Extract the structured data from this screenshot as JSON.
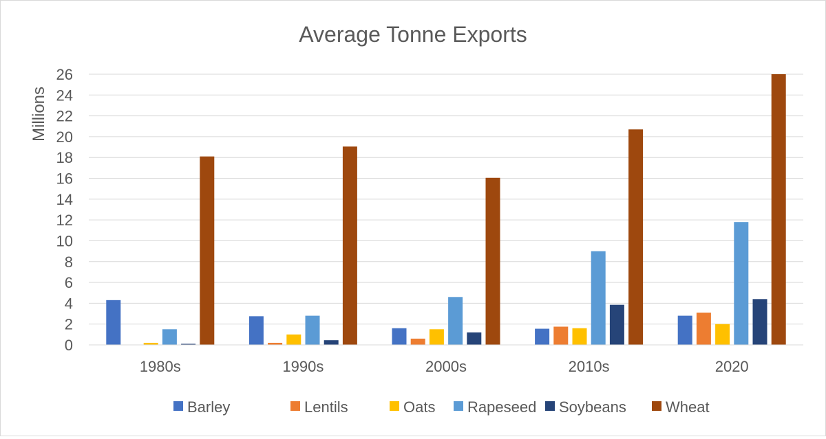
{
  "chart_data": {
    "type": "bar",
    "title": "Average Tonne Exports",
    "ylabel": "Millions",
    "xlabel": "",
    "categories": [
      "1980s",
      "1990s",
      "2000s",
      "2010s",
      "2020"
    ],
    "ylim": [
      0,
      26
    ],
    "yticks": [
      0,
      2,
      4,
      6,
      8,
      10,
      12,
      14,
      16,
      18,
      20,
      22,
      24,
      26
    ],
    "grid": true,
    "legend_position": "bottom",
    "series": [
      {
        "name": "Barley",
        "color": "#4472C4",
        "values": [
          4.3,
          2.75,
          1.6,
          1.55,
          2.8
        ]
      },
      {
        "name": "Lentils",
        "color": "#ED7D31",
        "values": [
          0.0,
          0.2,
          0.6,
          1.75,
          3.1
        ]
      },
      {
        "name": "Oats",
        "color": "#FFC000",
        "values": [
          0.2,
          1.0,
          1.5,
          1.6,
          2.0
        ]
      },
      {
        "name": "Rapeseed",
        "color": "#5B9BD5",
        "values": [
          1.5,
          2.8,
          4.6,
          9.0,
          11.8
        ]
      },
      {
        "name": "Soybeans",
        "color": "#264478",
        "values": [
          0.1,
          0.45,
          1.2,
          3.85,
          4.4
        ]
      },
      {
        "name": "Wheat",
        "color": "#9E480E",
        "values": [
          18.1,
          19.05,
          16.05,
          20.7,
          26.0
        ]
      }
    ]
  }
}
